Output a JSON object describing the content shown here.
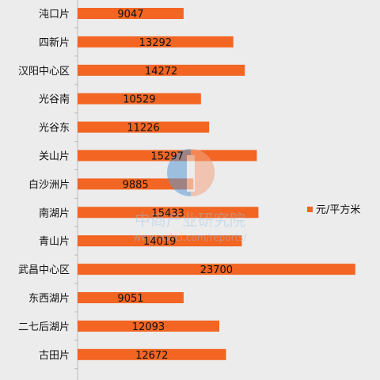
{
  "chart_data": {
    "type": "bar",
    "orientation": "horizontal",
    "categories": [
      "沌口片",
      "四新片",
      "汉阳中心区",
      "光谷南",
      "光谷东",
      "关山片",
      "白沙洲片",
      "南湖片",
      "青山片",
      "武昌中心区",
      "东西湖片",
      "二七后湖片",
      "古田片"
    ],
    "series": [
      {
        "name": "元/平方米",
        "values": [
          9047,
          13292,
          14272,
          10529,
          11226,
          15297,
          9885,
          15433,
          14019,
          23700,
          9051,
          12093,
          12672
        ],
        "color": "#f26522"
      }
    ],
    "xlim": [
      0,
      25000
    ],
    "grid": false,
    "legend_position": "right",
    "data_labels": true
  },
  "watermark": {
    "text": "中商产业研究院",
    "url": "www.askci.com/reports/"
  }
}
